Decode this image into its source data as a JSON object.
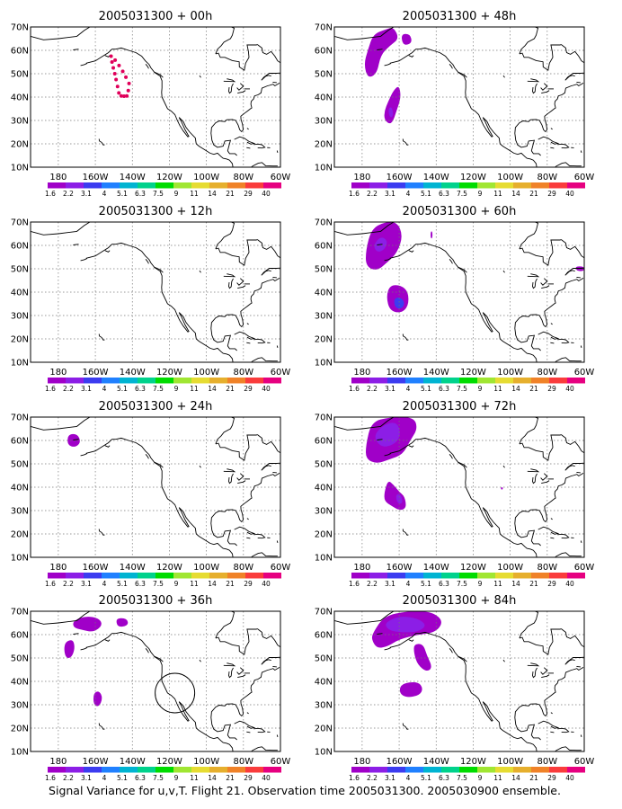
{
  "x_ticks": [
    "180",
    "160W",
    "140W",
    "120W",
    "100W",
    "80W",
    "60W"
  ],
  "y_ticks": [
    "10N",
    "20N",
    "30N",
    "40N",
    "50N",
    "60N",
    "70N"
  ],
  "colorbar": {
    "labels": [
      "1.6",
      "2.2",
      "3.1",
      "4",
      "5.1",
      "6.3",
      "7.5",
      "9",
      "11",
      "14",
      "21",
      "29",
      "40"
    ],
    "colors": [
      "#a000c8",
      "#8c1ee6",
      "#3c3cf0",
      "#2080ff",
      "#00b4d2",
      "#00d28c",
      "#00dc00",
      "#a0e632",
      "#e6dc32",
      "#e6af2d",
      "#f08228",
      "#fa3c3c",
      "#e60080"
    ]
  },
  "panels": [
    {
      "title": "2005031300 + 00h",
      "flight_track": true,
      "circle": false,
      "blobs": []
    },
    {
      "title": "2005031300 + 12h",
      "flight_track": false,
      "circle": false,
      "blobs": []
    },
    {
      "title": "2005031300 + 24h",
      "flight_track": false,
      "circle": false,
      "blobs": [
        {
          "pts": [
            [
              -175,
              62
            ],
            [
              -172,
              63
            ],
            [
              -169,
              62
            ],
            [
              -168,
              59
            ],
            [
              -171,
              57
            ],
            [
              -175,
              58
            ]
          ],
          "c": 0
        }
      ]
    },
    {
      "title": "2005031300 + 36h",
      "flight_track": false,
      "circle": true,
      "blobs": [
        {
          "pts": [
            [
              -172,
              66
            ],
            [
              -165,
              68
            ],
            [
              -158,
              67
            ],
            [
              -156,
              64
            ],
            [
              -161,
              61
            ],
            [
              -167,
              62
            ],
            [
              -172,
              63
            ]
          ],
          "c": 0
        },
        {
          "pts": [
            [
              -149,
              67
            ],
            [
              -143,
              67
            ],
            [
              -142,
              64
            ],
            [
              -148,
              63
            ]
          ],
          "c": 0
        },
        {
          "pts": [
            [
              -176,
              57
            ],
            [
              -172,
              58
            ],
            [
              -171,
              54
            ],
            [
              -173,
              50
            ],
            [
              -176,
              50
            ],
            [
              -177,
              54
            ]
          ],
          "c": 0
        },
        {
          "pts": [
            [
              -161,
              35
            ],
            [
              -158,
              36
            ],
            [
              -156,
              33
            ],
            [
              -158,
              29
            ],
            [
              -161,
              30
            ]
          ],
          "c": 0
        }
      ]
    },
    {
      "title": "2005031300 + 48h",
      "flight_track": false,
      "circle": false,
      "blobs": [
        {
          "pts": [
            [
              -177,
              60
            ],
            [
              -174,
              67
            ],
            [
              -167,
              69
            ],
            [
              -163,
              70
            ],
            [
              -160,
              65
            ],
            [
              -165,
              62
            ],
            [
              -170,
              58
            ],
            [
              -172,
              50
            ],
            [
              -177,
              48
            ],
            [
              -179,
              54
            ]
          ],
          "c": 0
        },
        {
          "pts": [
            [
              -159,
              67
            ],
            [
              -154,
              67
            ],
            [
              -153,
              63
            ],
            [
              -158,
              62
            ]
          ],
          "c": 0
        },
        {
          "pts": [
            [
              -166,
              38
            ],
            [
              -163,
              43
            ],
            [
              -160,
              45
            ],
            [
              -159,
              40
            ],
            [
              -161,
              35
            ],
            [
              -164,
              28
            ],
            [
              -168,
              30
            ],
            [
              -168,
              34
            ]
          ],
          "c": 0
        },
        {
          "pts": [
            [
              -166,
              35
            ],
            [
              -164,
              36
            ],
            [
              -163,
              32
            ],
            [
              -165,
              31
            ]
          ],
          "c": 1
        }
      ]
    },
    {
      "title": "2005031300 + 60h",
      "flight_track": false,
      "circle": false,
      "blobs": [
        {
          "pts": [
            [
              -178,
              58
            ],
            [
              -175,
              67
            ],
            [
              -168,
              70
            ],
            [
              -161,
              70
            ],
            [
              -158,
              64
            ],
            [
              -161,
              57
            ],
            [
              -166,
              53
            ],
            [
              -172,
              49
            ],
            [
              -178,
              51
            ]
          ],
          "c": 0
        },
        {
          "pts": [
            [
              -174,
              60
            ],
            [
              -170,
              64
            ],
            [
              -166,
              62
            ],
            [
              -168,
              58
            ],
            [
              -172,
              57
            ]
          ],
          "c": 1
        },
        {
          "pts": [
            [
              -167,
              38
            ],
            [
              -165,
              43
            ],
            [
              -159,
              43
            ],
            [
              -155,
              40
            ],
            [
              -155,
              34
            ],
            [
              -159,
              31
            ],
            [
              -165,
              32
            ]
          ],
          "c": 0
        },
        {
          "pts": [
            [
              -163,
              37
            ],
            [
              -160,
              38
            ],
            [
              -157,
              36
            ],
            [
              -158,
              33
            ],
            [
              -162,
              33
            ]
          ],
          "c": 2
        },
        {
          "pts": [
            [
              -143,
              66
            ],
            [
              -142,
              66
            ],
            [
              -142,
              63
            ],
            [
              -143,
              63
            ]
          ],
          "c": 0
        },
        {
          "pts": [
            [
              -65,
              51
            ],
            [
              -60,
              51
            ],
            [
              -60,
              49
            ],
            [
              -64,
              49
            ]
          ],
          "c": 0
        }
      ]
    },
    {
      "title": "2005031300 + 72h",
      "flight_track": false,
      "circle": false,
      "blobs": [
        {
          "pts": [
            [
              -178,
              58
            ],
            [
              -175,
              68
            ],
            [
              -165,
              70
            ],
            [
              -152,
              70
            ],
            [
              -150,
              65
            ],
            [
              -154,
              60
            ],
            [
              -158,
              54
            ],
            [
              -165,
              52
            ],
            [
              -172,
              50
            ],
            [
              -178,
              52
            ]
          ],
          "c": 0
        },
        {
          "pts": [
            [
              -174,
              62
            ],
            [
              -168,
              67
            ],
            [
              -161,
              68
            ],
            [
              -159,
              62
            ],
            [
              -163,
              58
            ],
            [
              -170,
              57
            ]
          ],
          "c": 1
        },
        {
          "pts": [
            [
              -168,
              38
            ],
            [
              -166,
              43
            ],
            [
              -163,
              41
            ],
            [
              -160,
              38
            ],
            [
              -157,
              36
            ],
            [
              -156,
              31
            ],
            [
              -160,
              30
            ],
            [
              -164,
              32
            ],
            [
              -168,
              34
            ]
          ],
          "c": 0
        },
        {
          "pts": [
            [
              -162,
              37
            ],
            [
              -159,
              37
            ],
            [
              -158,
              33
            ],
            [
              -161,
              33
            ]
          ],
          "c": 1
        },
        {
          "pts": [
            [
              -105,
              40
            ],
            [
              -104,
              40
            ],
            [
              -104,
              39
            ],
            [
              -105,
              39
            ]
          ],
          "c": 0
        }
      ]
    },
    {
      "title": "2005031300 + 84h",
      "flight_track": false,
      "circle": false,
      "blobs": [
        {
          "pts": [
            [
              -174,
              61
            ],
            [
              -168,
              68
            ],
            [
              -156,
              70
            ],
            [
              -143,
              70
            ],
            [
              -136,
              66
            ],
            [
              -140,
              61
            ],
            [
              -150,
              60
            ],
            [
              -160,
              58
            ],
            [
              -166,
              55
            ],
            [
              -172,
              54
            ],
            [
              -175,
              58
            ]
          ],
          "c": 0
        },
        {
          "pts": [
            [
              -168,
              65
            ],
            [
              -160,
              68
            ],
            [
              -150,
              67
            ],
            [
              -145,
              64
            ],
            [
              -150,
              61
            ],
            [
              -160,
              61
            ],
            [
              -166,
              62
            ]
          ],
          "c": 1
        },
        {
          "pts": [
            [
              -152,
              56
            ],
            [
              -147,
              56
            ],
            [
              -145,
              51
            ],
            [
              -142,
              46
            ],
            [
              -145,
              44
            ],
            [
              -150,
              47
            ],
            [
              -152,
              52
            ]
          ],
          "c": 0
        },
        {
          "pts": [
            [
              -159,
              39
            ],
            [
              -150,
              40
            ],
            [
              -147,
              37
            ],
            [
              -149,
              34
            ],
            [
              -156,
              33
            ],
            [
              -160,
              35
            ]
          ],
          "c": 0
        }
      ]
    }
  ],
  "footer_text": "Signal Variance for u,v,T. Flight 21. Observation time 2005031300. 2005030900 ensemble."
}
